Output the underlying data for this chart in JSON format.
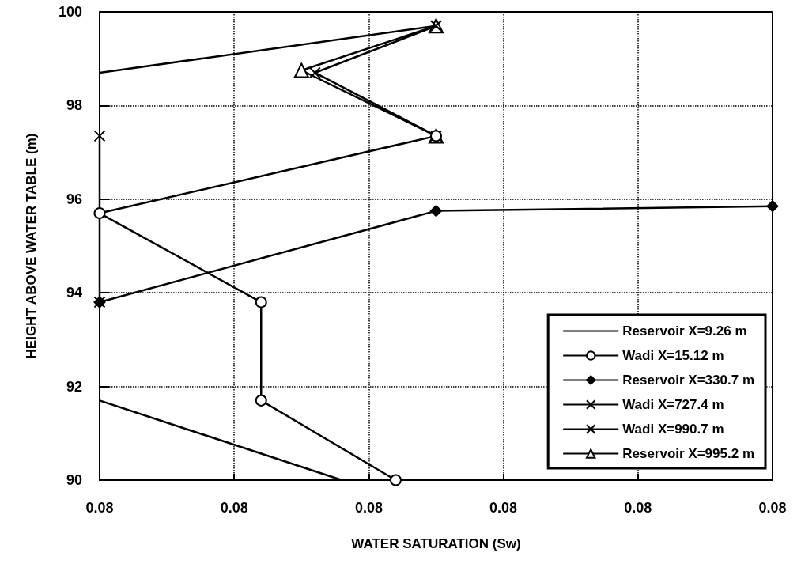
{
  "chart_data": {
    "type": "line",
    "xlabel": "WATER SATURATION (Sw)",
    "ylabel": "HEIGHT ABOVE WATER TABLE (m)",
    "xlim": [
      0.08,
      0.0805
    ],
    "xticks": [
      {
        "value": 0.08,
        "label": "0.08"
      },
      {
        "value": 0.0801,
        "label": "0.08"
      },
      {
        "value": 0.0802,
        "label": "0.08"
      },
      {
        "value": 0.0803,
        "label": "0.08"
      },
      {
        "value": 0.0804,
        "label": "0.08"
      },
      {
        "value": 0.0805,
        "label": "0.08"
      }
    ],
    "ylim": [
      90,
      100
    ],
    "yticks": [
      90,
      92,
      94,
      96,
      98,
      100
    ],
    "grid": true,
    "legend": "bottom right",
    "series": [
      {
        "name": "Reservoir X=9.26 m",
        "color": "#000000",
        "marker": "none",
        "x": [
          0.08,
          0.08025,
          null,
          0.08,
          0.08018
        ],
        "values": [
          98.7,
          99.7,
          null,
          91.7,
          90
        ]
      },
      {
        "name": "Wadi X=15.12 m",
        "color": "#000000",
        "marker": "circle",
        "x": [
          0.08025,
          0.08,
          0.08012,
          0.08012,
          0.08022
        ],
        "values": [
          97.35,
          95.7,
          93.8,
          91.7,
          90
        ]
      },
      {
        "name": "Reservoir X=330.7 m",
        "color": "#000000",
        "marker": "diamond",
        "x": [
          0.08,
          0.08025,
          0.0805
        ],
        "values": [
          93.8,
          95.75,
          95.85
        ]
      },
      {
        "name": "Wadi X=727.4 m",
        "color": "#000000",
        "marker": "cross",
        "x": [
          0.08,
          0.08
        ],
        "values": [
          97.35,
          93.8
        ]
      },
      {
        "name": "Wadi X=990.7 m",
        "color": "#000000",
        "marker": "cross",
        "x": [
          0.08025,
          0.08016,
          0.08025
        ],
        "values": [
          99.7,
          98.7,
          97.35
        ]
      },
      {
        "name": "Reservoir X=995.2 m",
        "color": "#000000",
        "marker": "triangle",
        "x": [
          0.08025,
          0.08015,
          0.08025
        ],
        "values": [
          99.7,
          98.75,
          97.35
        ]
      }
    ]
  }
}
